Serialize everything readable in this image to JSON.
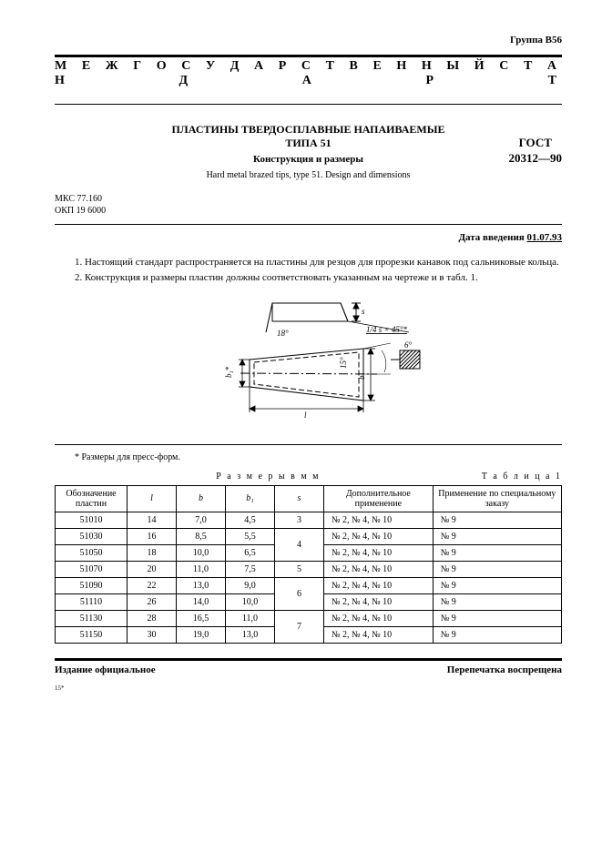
{
  "group": "Группа В56",
  "banner": "М Е Ж Г О С У Д А Р С Т В Е Н Н Ы Й   С Т А Н Д А Р Т",
  "title": {
    "line1": "ПЛАСТИНЫ ТВЕРДОСПЛАВНЫЕ НАПАИВАЕМЫЕ",
    "line2": "ТИПА 51",
    "sub": "Конструкция и размеры",
    "en": "Hard metal brazed tips, type 51. Design and dimensions",
    "gost1": "ГОСТ",
    "gost2": "20312—90"
  },
  "codes": {
    "mks": "МКС  77.160",
    "okp": "ОКП  19 6000"
  },
  "intro_date_label": "Дата введения ",
  "intro_date_value": "01.07.93",
  "paragraphs": [
    "1. Настоящий стандарт распространяется на пластины для резцов для прорезки канавок под сальниковые кольца.",
    "2. Конструкция  и  размеры  пластин  должны  соответствовать  указанным  на  чертеже  и  в  табл. 1."
  ],
  "drawing_labels": {
    "angle18": "18°",
    "chamfer": "1/4 s × 45°*",
    "s": "s",
    "b1": "b₁*",
    "b": "b",
    "l": "l",
    "angle15": "15°",
    "angle6": "6°"
  },
  "footnote": "* Размеры для пресс-форм.",
  "table": {
    "caption_center": "Р а з м е р ы  в  м м",
    "caption_right": "Т а б л и ц а  1",
    "headers": [
      "Обозначение пластин",
      "l",
      "b",
      "b₁",
      "s",
      "Дополнительное применение",
      "Применение по специальному заказу"
    ],
    "rows": [
      {
        "d": "51010",
        "l": "14",
        "b": "7,0",
        "b1": "4,5",
        "s": "3",
        "add": "№ 2,  № 4,  № 10",
        "spec": "№ 9",
        "s_span": 1
      },
      {
        "d": "51030",
        "l": "16",
        "b": "8,5",
        "b1": "5,5",
        "s": "4",
        "add": "№ 2,  № 4,  № 10",
        "spec": "№ 9",
        "s_span": 2
      },
      {
        "d": "51050",
        "l": "18",
        "b": "10,0",
        "b1": "6,5",
        "s": "",
        "add": "№ 2,  № 4,  № 10",
        "spec": "№ 9",
        "s_span": 0
      },
      {
        "d": "51070",
        "l": "20",
        "b": "11,0",
        "b1": "7,5",
        "s": "5",
        "add": "№ 2,  № 4,  № 10",
        "spec": "№ 9",
        "s_span": 1
      },
      {
        "d": "51090",
        "l": "22",
        "b": "13,0",
        "b1": "9,0",
        "s": "6",
        "add": "№ 2,  № 4,  № 10",
        "spec": "№ 9",
        "s_span": 2
      },
      {
        "d": "51110",
        "l": "26",
        "b": "14,0",
        "b1": "10,0",
        "s": "",
        "add": "№ 2,  № 4,  № 10",
        "spec": "№ 9",
        "s_span": 0
      },
      {
        "d": "51130",
        "l": "28",
        "b": "16,5",
        "b1": "11,0",
        "s": "7",
        "add": "№ 2,  № 4,  № 10",
        "spec": "№ 9",
        "s_span": 2
      },
      {
        "d": "51150",
        "l": "30",
        "b": "19,0",
        "b1": "13,0",
        "s": "",
        "add": "№ 2,  № 4,  № 10",
        "spec": "№ 9",
        "s_span": 0
      }
    ]
  },
  "bottom": {
    "left": "Издание официальное",
    "right": "Перепечатка воспрещена"
  },
  "tiny": "15*"
}
